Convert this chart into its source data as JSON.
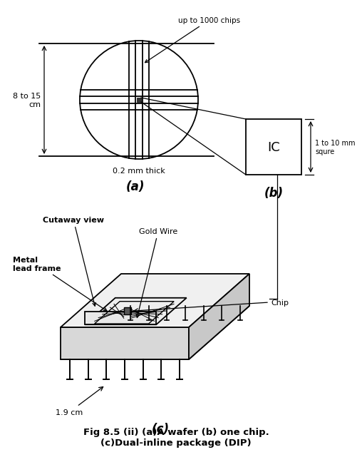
{
  "bg_color": "#ffffff",
  "title_text": "Fig 8.5 (ii) (a)A wafer (b) one chip.\n(c)Dual-inline package (DIP)",
  "label_a": "(a)",
  "label_b": "(b)",
  "label_c": "(c)",
  "wafer_annotation": "up to 1000 chips",
  "wafer_thickness": "0.2 mm thick",
  "wafer_height": "8 to 15\ncm",
  "ic_size": "1 to 10 mm\nsqure",
  "ic_label": "IC",
  "dip_width": "1.9 cm",
  "cutaway_label": "Cutaway view",
  "metal_label": "Metal\nlead frame",
  "gold_wire_label": "Gold Wire",
  "chip_label": "Chip"
}
